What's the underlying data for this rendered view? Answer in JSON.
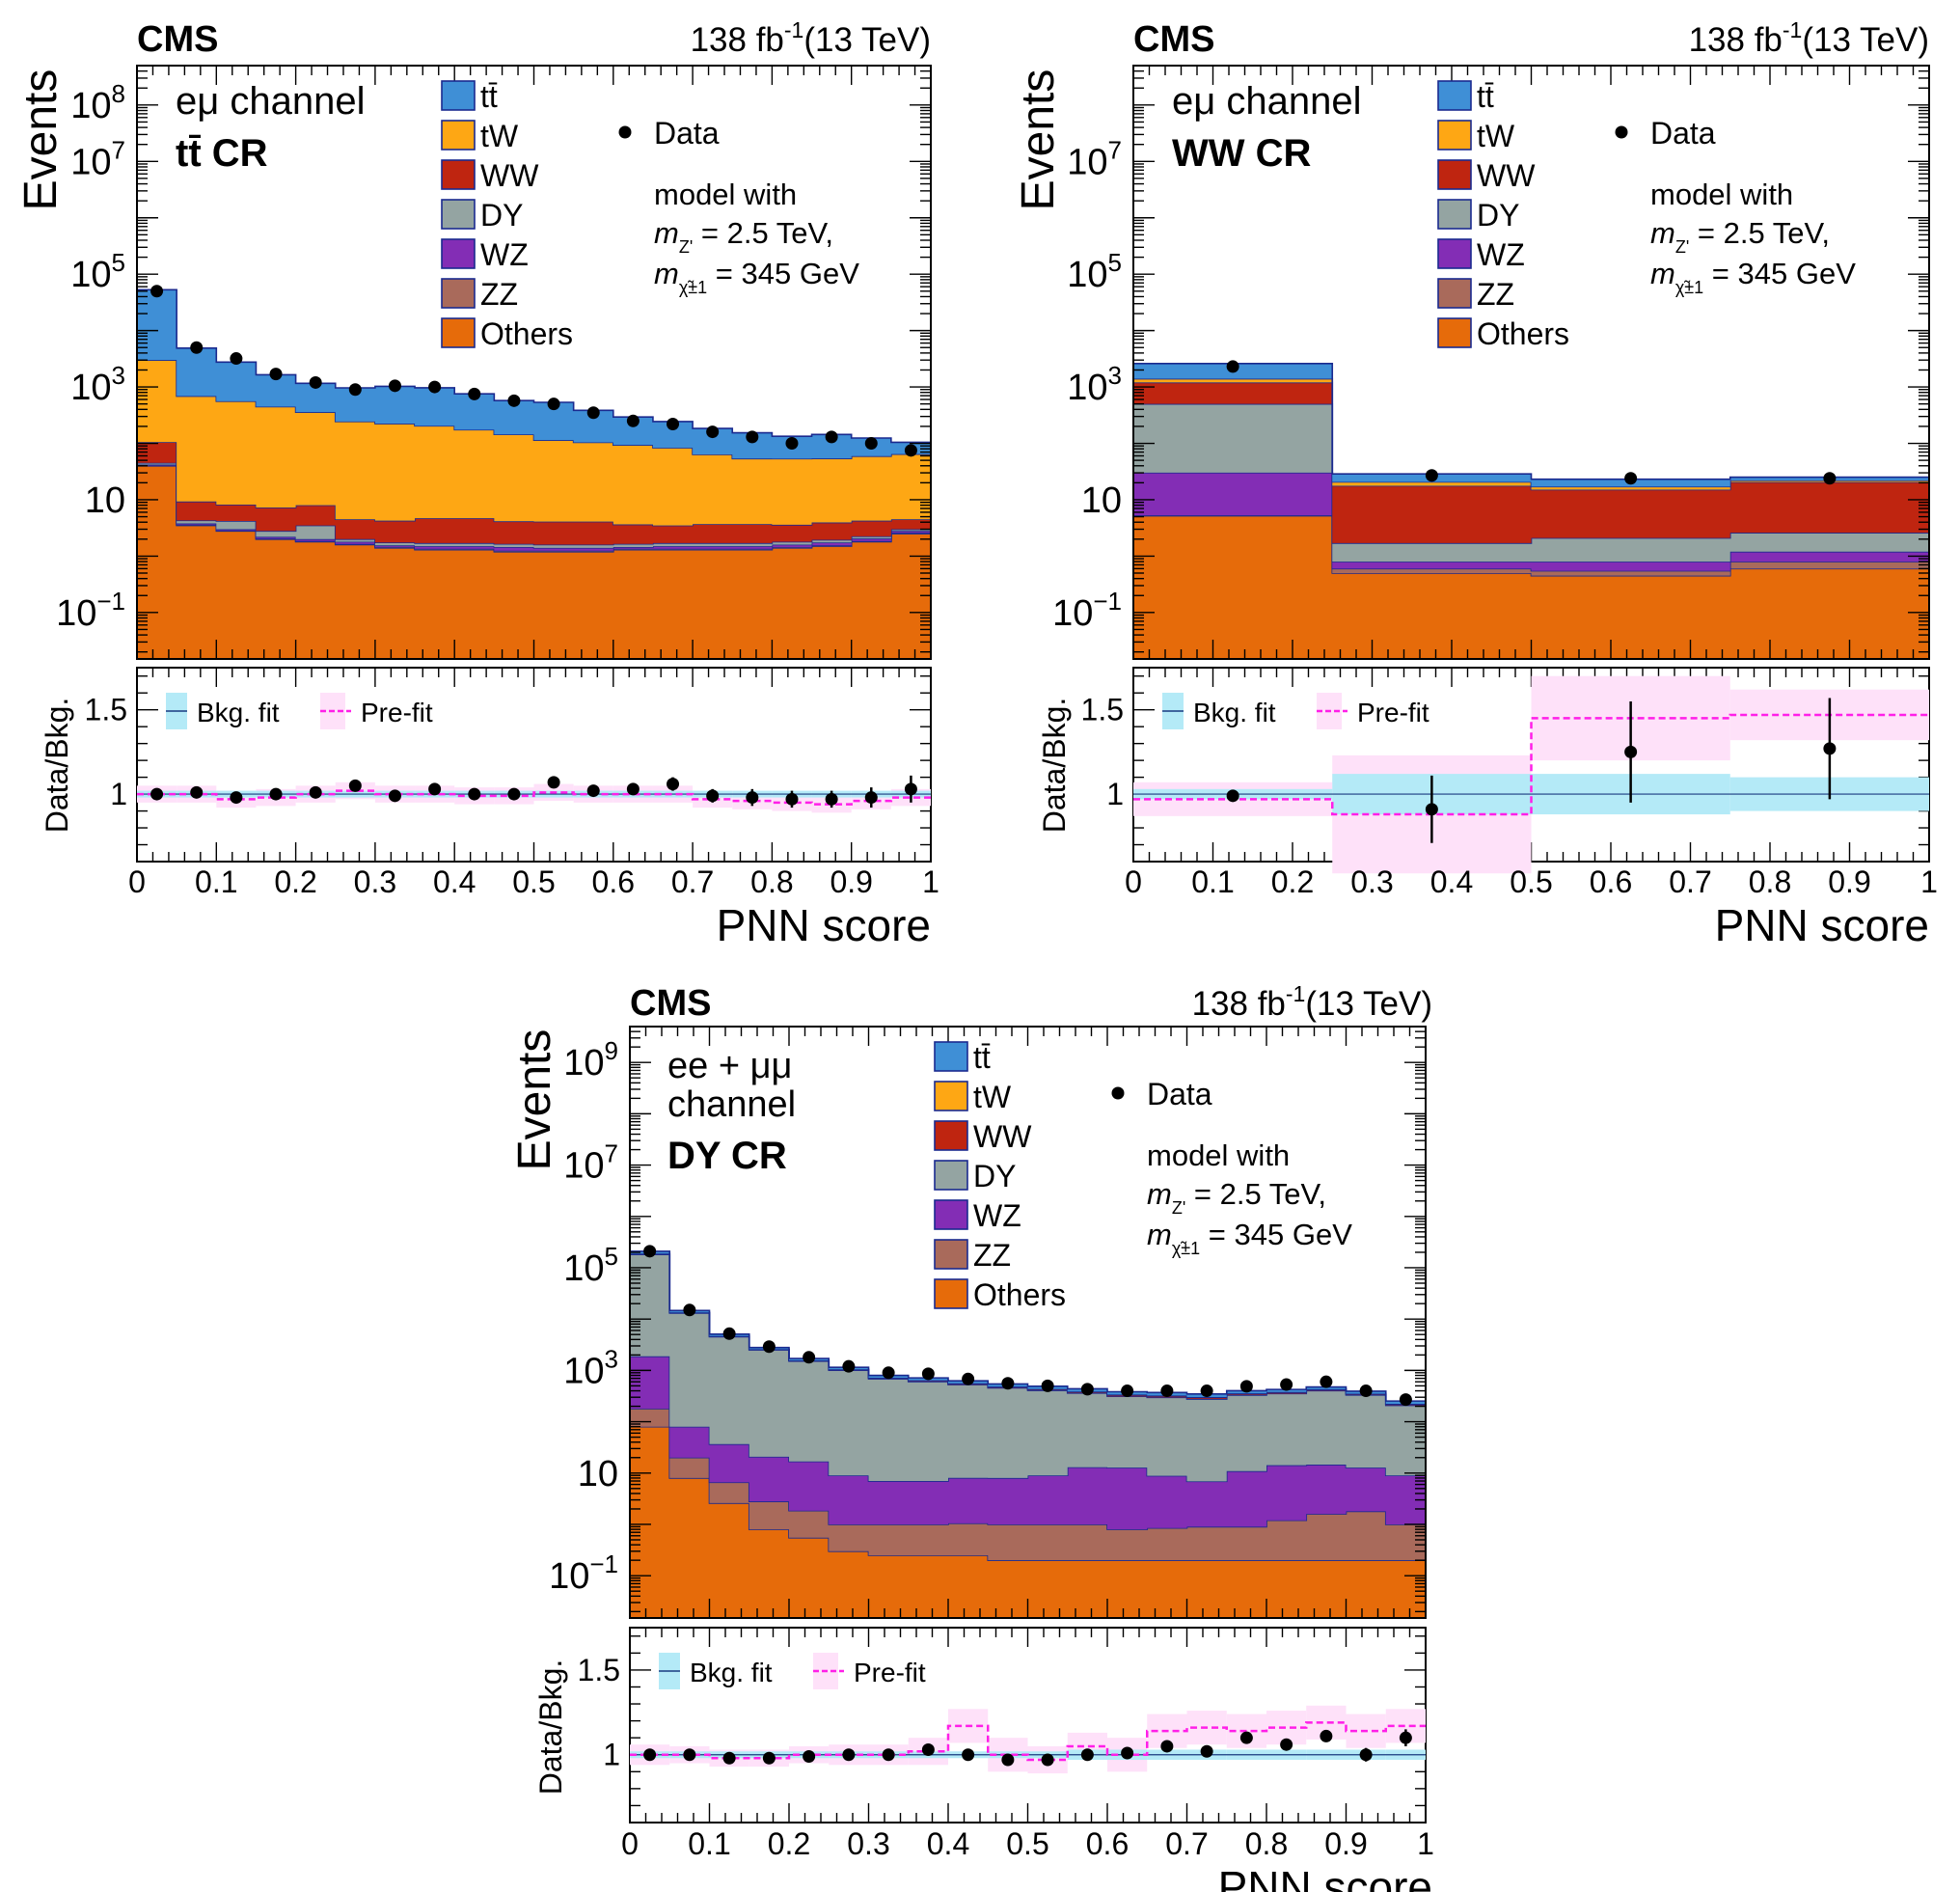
{
  "colors": {
    "ttbar": "#3f8fd6",
    "tW": "#fea714",
    "WW": "#bf2510",
    "DY": "#94a4a2",
    "WZ": "#832db5",
    "ZZ": "#a96a5b",
    "Others": "#e66b0a",
    "outline": "#1a2a8f",
    "bkg_fit_band": "#b4eaf7",
    "prefit_band": "#fee1f9",
    "prefit_line": "#ff1fe8"
  },
  "chart_data": [
    {
      "id": "ttbar-cr",
      "type": "stacked-histogram",
      "experiment": "CMS",
      "lumi_label": "138 fb",
      "lumi_exp": "-1",
      "energy_label": "(13 TeV)",
      "channel_lines": [
        "eμ channel"
      ],
      "region_label": "tt̄ CR",
      "legend": {
        "processes": [
          "tt̄",
          "tW",
          "WW",
          "DY",
          "WZ",
          "ZZ",
          "Others"
        ],
        "data_label": "Data",
        "model_line1": "model with",
        "model_line2": "m",
        "model_line2_sub": "Z'",
        "model_line2_rest": " = 2.5 TeV,",
        "model_line3": "m",
        "model_line3_sub": "χ̃±1",
        "model_line3_rest": " = 345 GeV"
      },
      "ylabel": "Events",
      "ylim": [
        0.015,
        500000000.0
      ],
      "y_ticks": [
        {
          "v": 0.1,
          "base": "10",
          "exp": "−1"
        },
        {
          "v": 10,
          "base": "10",
          "exp": ""
        },
        {
          "v": 1000,
          "base": "10",
          "exp": "3"
        },
        {
          "v": 100000,
          "base": "10",
          "exp": "5"
        },
        {
          "v": 10000000,
          "base": "10",
          "exp": "7"
        },
        {
          "v": 100000000,
          "base": "10",
          "exp": "8"
        }
      ],
      "xlabel": "PNN score",
      "x_ticks": [
        "0",
        "0.1",
        "0.2",
        "0.3",
        "0.4",
        "0.5",
        "0.6",
        "0.7",
        "0.8",
        "0.9",
        "1"
      ],
      "bin_edges": [
        0,
        0.05,
        0.1,
        0.15,
        0.2,
        0.25,
        0.3,
        0.35,
        0.4,
        0.45,
        0.5,
        0.55,
        0.6,
        0.65,
        0.7,
        0.75,
        0.8,
        0.85,
        0.9,
        0.95,
        1.0
      ],
      "series": [
        {
          "name": "Others",
          "values": [
            40,
            3.5,
            2.8,
            2.0,
            1.8,
            1.6,
            1.4,
            1.3,
            1.3,
            1.2,
            1.2,
            1.2,
            1.3,
            1.3,
            1.3,
            1.3,
            1.4,
            1.5,
            1.8,
            2.5
          ]
        },
        {
          "name": "ZZ",
          "values": [
            0.6,
            0.1,
            0.05,
            0.05,
            0.05,
            0.05,
            0.05,
            0.05,
            0.05,
            0.05,
            0.05,
            0.05,
            0.05,
            0.05,
            0.05,
            0.05,
            0.05,
            0.05,
            0.05,
            0.1
          ]
        },
        {
          "name": "WZ",
          "values": [
            1.5,
            0.2,
            0.15,
            0.15,
            0.15,
            0.15,
            0.1,
            0.15,
            0.15,
            0.2,
            0.15,
            0.15,
            0.1,
            0.15,
            0.15,
            0.15,
            0.15,
            0.2,
            0.2,
            0.2
          ]
        },
        {
          "name": "DY",
          "values": [
            3.0,
            0.5,
            1.2,
            0.6,
            1.5,
            0.2,
            0.2,
            0.2,
            0.2,
            0.2,
            0.2,
            0.2,
            0.2,
            0.2,
            0.2,
            0.2,
            0.2,
            0.2,
            0.2,
            0.2
          ]
        },
        {
          "name": "WW",
          "values": [
            60,
            5,
            4,
            4.5,
            4.5,
            2.5,
            2.5,
            3,
            3,
            2.5,
            2.5,
            2.5,
            2,
            1.8,
            2,
            2,
            1.8,
            2,
            2,
            1.5
          ]
        },
        {
          "name": "tW",
          "values": [
            2900,
            680,
            550,
            440,
            350,
            240,
            220,
            200,
            170,
            140,
            110,
            100,
            90,
            80,
            60,
            50,
            50,
            50,
            55,
            60
          ]
        },
        {
          "name": "tt̄",
          "values": [
            50000,
            4200,
            2200,
            1200,
            800,
            720,
            800,
            760,
            580,
            430,
            420,
            280,
            200,
            160,
            120,
            100,
            80,
            90,
            65,
            40
          ]
        }
      ],
      "data_values": [
        50000,
        5000,
        3200,
        1700,
        1200,
        900,
        1050,
        1000,
        750,
        570,
        500,
        350,
        250,
        220,
        160,
        130,
        100,
        130,
        100,
        75
      ],
      "ratio": {
        "ylabel": "Data/Bkg.",
        "ylim": [
          0.6,
          1.75
        ],
        "y_ticks": [
          "1",
          "1.5"
        ],
        "legend_fit": "Bkg. fit",
        "legend_prefit": "Pre-fit",
        "values": [
          1.0,
          1.01,
          0.98,
          1.0,
          1.01,
          1.05,
          0.99,
          1.03,
          1.0,
          1.0,
          1.07,
          1.02,
          1.03,
          1.06,
          0.99,
          0.98,
          0.97,
          0.97,
          0.98,
          1.03
        ],
        "errors": [
          0.01,
          0.01,
          0.01,
          0.01,
          0.01,
          0.02,
          0.01,
          0.02,
          0.02,
          0.02,
          0.02,
          0.03,
          0.03,
          0.04,
          0.04,
          0.05,
          0.05,
          0.05,
          0.06,
          0.08
        ],
        "fit_band": [
          0.02,
          0.02,
          0.02,
          0.02,
          0.02,
          0.02,
          0.02,
          0.02,
          0.02,
          0.02,
          0.02,
          0.02,
          0.02,
          0.02,
          0.02,
          0.02,
          0.02,
          0.02,
          0.02,
          0.02
        ],
        "prefit_band": [
          0.05,
          0.05,
          0.05,
          0.05,
          0.05,
          0.05,
          0.05,
          0.05,
          0.05,
          0.05,
          0.05,
          0.05,
          0.05,
          0.05,
          0.05,
          0.05,
          0.05,
          0.05,
          0.05,
          0.05
        ],
        "prefit_line": [
          1.0,
          1.0,
          0.97,
          0.98,
          1.0,
          1.02,
          1.0,
          1.0,
          0.99,
          0.99,
          1.01,
          1.0,
          1.0,
          1.0,
          0.97,
          0.96,
          0.95,
          0.94,
          0.96,
          0.98
        ]
      }
    },
    {
      "id": "ww-cr",
      "type": "stacked-histogram",
      "experiment": "CMS",
      "lumi_label": "138 fb",
      "lumi_exp": "-1",
      "energy_label": "(13 TeV)",
      "channel_lines": [
        "eμ channel"
      ],
      "region_label": "WW CR",
      "legend": {
        "processes": [
          "tt̄",
          "tW",
          "WW",
          "DY",
          "WZ",
          "ZZ",
          "Others"
        ],
        "data_label": "Data",
        "model_line1": "model with",
        "model_line2": "m",
        "model_line2_sub": "Z'",
        "model_line2_rest": " = 2.5 TeV,",
        "model_line3": "m",
        "model_line3_sub": "χ̃±1",
        "model_line3_rest": " = 345 GeV"
      },
      "ylabel": "Events",
      "ylim": [
        0.015,
        500000000.0
      ],
      "y_ticks": [
        {
          "v": 0.1,
          "base": "10",
          "exp": "−1"
        },
        {
          "v": 10,
          "base": "10",
          "exp": ""
        },
        {
          "v": 1000,
          "base": "10",
          "exp": "3"
        },
        {
          "v": 100000,
          "base": "10",
          "exp": "5"
        },
        {
          "v": 10000000,
          "base": "10",
          "exp": "7"
        }
      ],
      "xlabel": "PNN score",
      "x_ticks": [
        "0",
        "0.1",
        "0.2",
        "0.3",
        "0.4",
        "0.5",
        "0.6",
        "0.7",
        "0.8",
        "0.9",
        "1"
      ],
      "bin_edges": [
        0,
        0.25,
        0.5,
        0.75,
        1.0
      ],
      "series": [
        {
          "name": "Others",
          "values": [
            5.2,
            0.5,
            0.45,
            0.6
          ]
        },
        {
          "name": "ZZ",
          "values": [
            0.1,
            0.1,
            0.1,
            0.2
          ]
        },
        {
          "name": "WZ",
          "values": [
            25,
            0.2,
            0.25,
            0.4
          ]
        },
        {
          "name": "DY",
          "values": [
            470,
            0.9,
            1.3,
            1.4
          ]
        },
        {
          "name": "WW",
          "values": [
            700,
            16,
            13,
            18
          ]
        },
        {
          "name": "tW",
          "values": [
            200,
            3,
            2,
            1.5
          ]
        },
        {
          "name": "tt̄",
          "values": [
            1200,
            8,
            6,
            3
          ]
        }
      ],
      "data_values": [
        2300,
        27,
        24,
        24
      ],
      "ratio": {
        "ylabel": "Data/Bkg.",
        "ylim": [
          0.6,
          1.75
        ],
        "y_ticks": [
          "1",
          "1.5"
        ],
        "legend_fit": "Bkg. fit",
        "legend_prefit": "Pre-fit",
        "values": [
          0.99,
          0.91,
          1.25,
          1.27
        ],
        "errors": [
          0.02,
          0.2,
          0.3,
          0.3
        ],
        "fit_band": [
          0.03,
          0.12,
          0.12,
          0.1
        ],
        "prefit_band": [
          0.1,
          0.35,
          0.25,
          0.15
        ],
        "prefit_line": [
          0.97,
          0.88,
          1.45,
          1.47
        ]
      }
    },
    {
      "id": "dy-cr",
      "type": "stacked-histogram",
      "experiment": "CMS",
      "lumi_label": "138 fb",
      "lumi_exp": "-1",
      "energy_label": "(13 TeV)",
      "channel_lines": [
        "ee + μμ",
        "channel"
      ],
      "region_label": "DY CR",
      "legend": {
        "processes": [
          "tt̄",
          "tW",
          "WW",
          "DY",
          "WZ",
          "ZZ",
          "Others"
        ],
        "data_label": "Data",
        "model_line1": "model with",
        "model_line2": "m",
        "model_line2_sub": "Z'",
        "model_line2_rest": " = 2.5 TeV,",
        "model_line3": "m",
        "model_line3_sub": "χ̃±1",
        "model_line3_rest": " = 345 GeV"
      },
      "ylabel": "Events",
      "ylim": [
        0.015,
        5000000000.0
      ],
      "y_ticks": [
        {
          "v": 0.1,
          "base": "10",
          "exp": "−1"
        },
        {
          "v": 10,
          "base": "10",
          "exp": ""
        },
        {
          "v": 1000,
          "base": "10",
          "exp": "3"
        },
        {
          "v": 100000,
          "base": "10",
          "exp": "5"
        },
        {
          "v": 10000000,
          "base": "10",
          "exp": "7"
        },
        {
          "v": 1000000000,
          "base": "10",
          "exp": "9"
        }
      ],
      "xlabel": "PNN score",
      "x_ticks": [
        "0",
        "0.1",
        "0.2",
        "0.3",
        "0.4",
        "0.5",
        "0.6",
        "0.7",
        "0.8",
        "0.9",
        "1"
      ],
      "bin_edges": [
        0,
        0.05,
        0.1,
        0.15,
        0.2,
        0.25,
        0.3,
        0.35,
        0.4,
        0.45,
        0.5,
        0.55,
        0.6,
        0.65,
        0.7,
        0.75,
        0.8,
        0.85,
        0.9,
        0.95,
        1.0
      ],
      "series": [
        {
          "name": "Others",
          "values": [
            80,
            8,
            2.6,
            0.8,
            0.55,
            0.3,
            0.25,
            0.25,
            0.25,
            0.2,
            0.2,
            0.2,
            0.2,
            0.2,
            0.2,
            0.2,
            0.2,
            0.2,
            0.2,
            0.2
          ]
        },
        {
          "name": "ZZ",
          "values": [
            100,
            12,
            4,
            2,
            1.3,
            0.7,
            0.75,
            0.75,
            0.8,
            0.8,
            0.8,
            0.8,
            0.6,
            0.65,
            0.7,
            0.7,
            1.0,
            1.4,
            1.6,
            0.8
          ]
        },
        {
          "name": "WZ",
          "values": [
            1700,
            60,
            30,
            18,
            15,
            8,
            6,
            6,
            7,
            7,
            8,
            12,
            12,
            8,
            6,
            10,
            13,
            13,
            11,
            8
          ]
        },
        {
          "name": "DY",
          "values": [
            180000,
            13000,
            4500,
            2500,
            1500,
            1000,
            680,
            600,
            520,
            450,
            400,
            350,
            300,
            290,
            270,
            320,
            340,
            390,
            320,
            200
          ]
        },
        {
          "name": "WW",
          "values": [
            5000,
            300,
            100,
            50,
            35,
            30,
            25,
            25,
            25,
            20,
            20,
            20,
            20,
            20,
            20,
            20,
            20,
            20,
            15,
            10
          ]
        },
        {
          "name": "tW",
          "values": [
            2000,
            120,
            40,
            20,
            14,
            10,
            8,
            8,
            7,
            6,
            6,
            6,
            6,
            6,
            6,
            6,
            6,
            6,
            5,
            4
          ]
        },
        {
          "name": "tt̄",
          "values": [
            20000,
            1200,
            400,
            200,
            140,
            100,
            80,
            75,
            65,
            60,
            55,
            50,
            45,
            45,
            45,
            45,
            45,
            45,
            40,
            30
          ]
        }
      ],
      "data_values": [
        210000,
        15000,
        5200,
        2900,
        1800,
        1200,
        900,
        860,
        680,
        560,
        500,
        430,
        400,
        400,
        400,
        490,
        530,
        600,
        400,
        270
      ],
      "ratio": {
        "ylabel": "Data/Bkg.",
        "ylim": [
          0.6,
          1.75
        ],
        "y_ticks": [
          "1",
          "1.5"
        ],
        "legend_fit": "Bkg. fit",
        "legend_prefit": "Pre-fit",
        "values": [
          1.0,
          1.0,
          0.98,
          0.98,
          0.99,
          1.0,
          1.0,
          1.03,
          1.0,
          0.97,
          0.97,
          1.0,
          1.01,
          1.05,
          1.02,
          1.1,
          1.06,
          1.11,
          1.0,
          1.1
        ],
        "errors": [
          0.01,
          0.01,
          0.01,
          0.01,
          0.01,
          0.01,
          0.01,
          0.01,
          0.01,
          0.02,
          0.02,
          0.02,
          0.02,
          0.02,
          0.02,
          0.03,
          0.03,
          0.03,
          0.04,
          0.05
        ],
        "fit_band": [
          0.02,
          0.02,
          0.02,
          0.02,
          0.02,
          0.02,
          0.02,
          0.02,
          0.02,
          0.02,
          0.02,
          0.03,
          0.03,
          0.03,
          0.03,
          0.03,
          0.03,
          0.03,
          0.03,
          0.03
        ],
        "prefit_band": [
          0.06,
          0.05,
          0.05,
          0.05,
          0.05,
          0.06,
          0.06,
          0.08,
          0.1,
          0.1,
          0.08,
          0.08,
          0.1,
          0.1,
          0.1,
          0.1,
          0.1,
          0.1,
          0.1,
          0.1
        ],
        "prefit_line": [
          1.0,
          1.0,
          0.98,
          0.98,
          1.0,
          1.0,
          1.0,
          1.02,
          1.17,
          1.0,
          0.97,
          1.05,
          1.0,
          1.14,
          1.16,
          1.14,
          1.16,
          1.19,
          1.14,
          1.17
        ]
      }
    }
  ]
}
